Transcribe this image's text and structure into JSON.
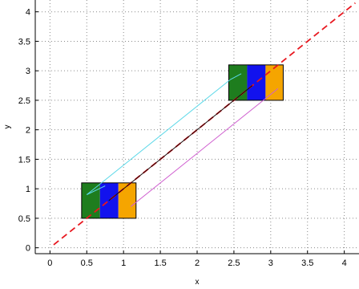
{
  "chart_data": {
    "type": "line",
    "title": "",
    "xlabel": "x",
    "ylabel": "y",
    "xlim": [
      -0.2,
      4.2
    ],
    "ylim": [
      -0.1,
      4.2
    ],
    "x_ticks": [
      0,
      0.5,
      1,
      1.5,
      2,
      2.5,
      3,
      3.5,
      4
    ],
    "y_ticks": [
      0,
      0.5,
      1,
      1.5,
      2,
      2.5,
      3,
      3.5,
      4
    ],
    "x_tick_labels": [
      "0",
      "0.5",
      "1",
      "1.5",
      "2",
      "2.5",
      "3",
      "3.5",
      "4"
    ],
    "y_tick_labels": [
      "0",
      "0.5",
      "1",
      "1.5",
      "2",
      "2.5",
      "3",
      "3.5",
      "4"
    ],
    "grid": true,
    "grid_style": "dotted",
    "series": [
      {
        "style": "dashed",
        "color": "#e8171f",
        "x": [
          0.05,
          4.15
        ],
        "y": [
          0.05,
          4.15
        ]
      },
      {
        "style": "solid",
        "color": "#5ad8e8",
        "x": [
          0.5,
          2.45
        ],
        "y": [
          0.9,
          2.85
        ]
      },
      {
        "style": "solid",
        "color": "#1a0a0a",
        "x": [
          0.8,
          2.75
        ],
        "y": [
          0.8,
          2.75
        ]
      },
      {
        "style": "solid",
        "color": "#d060d0",
        "x": [
          1.1,
          3.05
        ],
        "y": [
          0.7,
          2.65
        ]
      }
    ],
    "rectangles": [
      {
        "x0": 0.43,
        "y0": 0.5,
        "x1": 1.17,
        "y1": 1.1,
        "bands": [
          {
            "color": "#1e7d1e",
            "from": 0.43,
            "to": 0.68
          },
          {
            "color": "#1212ee",
            "from": 0.68,
            "to": 0.93
          },
          {
            "color": "#f5a500",
            "from": 0.93,
            "to": 1.17
          }
        ]
      },
      {
        "x0": 2.43,
        "y0": 2.5,
        "x1": 3.17,
        "y1": 3.1,
        "bands": [
          {
            "color": "#1e7d1e",
            "from": 2.43,
            "to": 2.68
          },
          {
            "color": "#1212ee",
            "from": 2.68,
            "to": 2.93
          },
          {
            "color": "#f5a500",
            "from": 2.93,
            "to": 3.17
          }
        ]
      }
    ],
    "overlay_segments": [
      {
        "color": "#5ad8e8",
        "x": [
          0.5,
          0.75
        ],
        "y": [
          0.9,
          1.05
        ]
      },
      {
        "color": "#d060d0",
        "x": [
          1.1,
          1.15
        ],
        "y": [
          0.7,
          0.75
        ]
      },
      {
        "color": "#5ad8e8",
        "x": [
          2.45,
          2.6
        ],
        "y": [
          2.85,
          2.95
        ]
      },
      {
        "color": "#d060d0",
        "x": [
          3.05,
          3.1
        ],
        "y": [
          2.65,
          2.7
        ]
      }
    ]
  }
}
